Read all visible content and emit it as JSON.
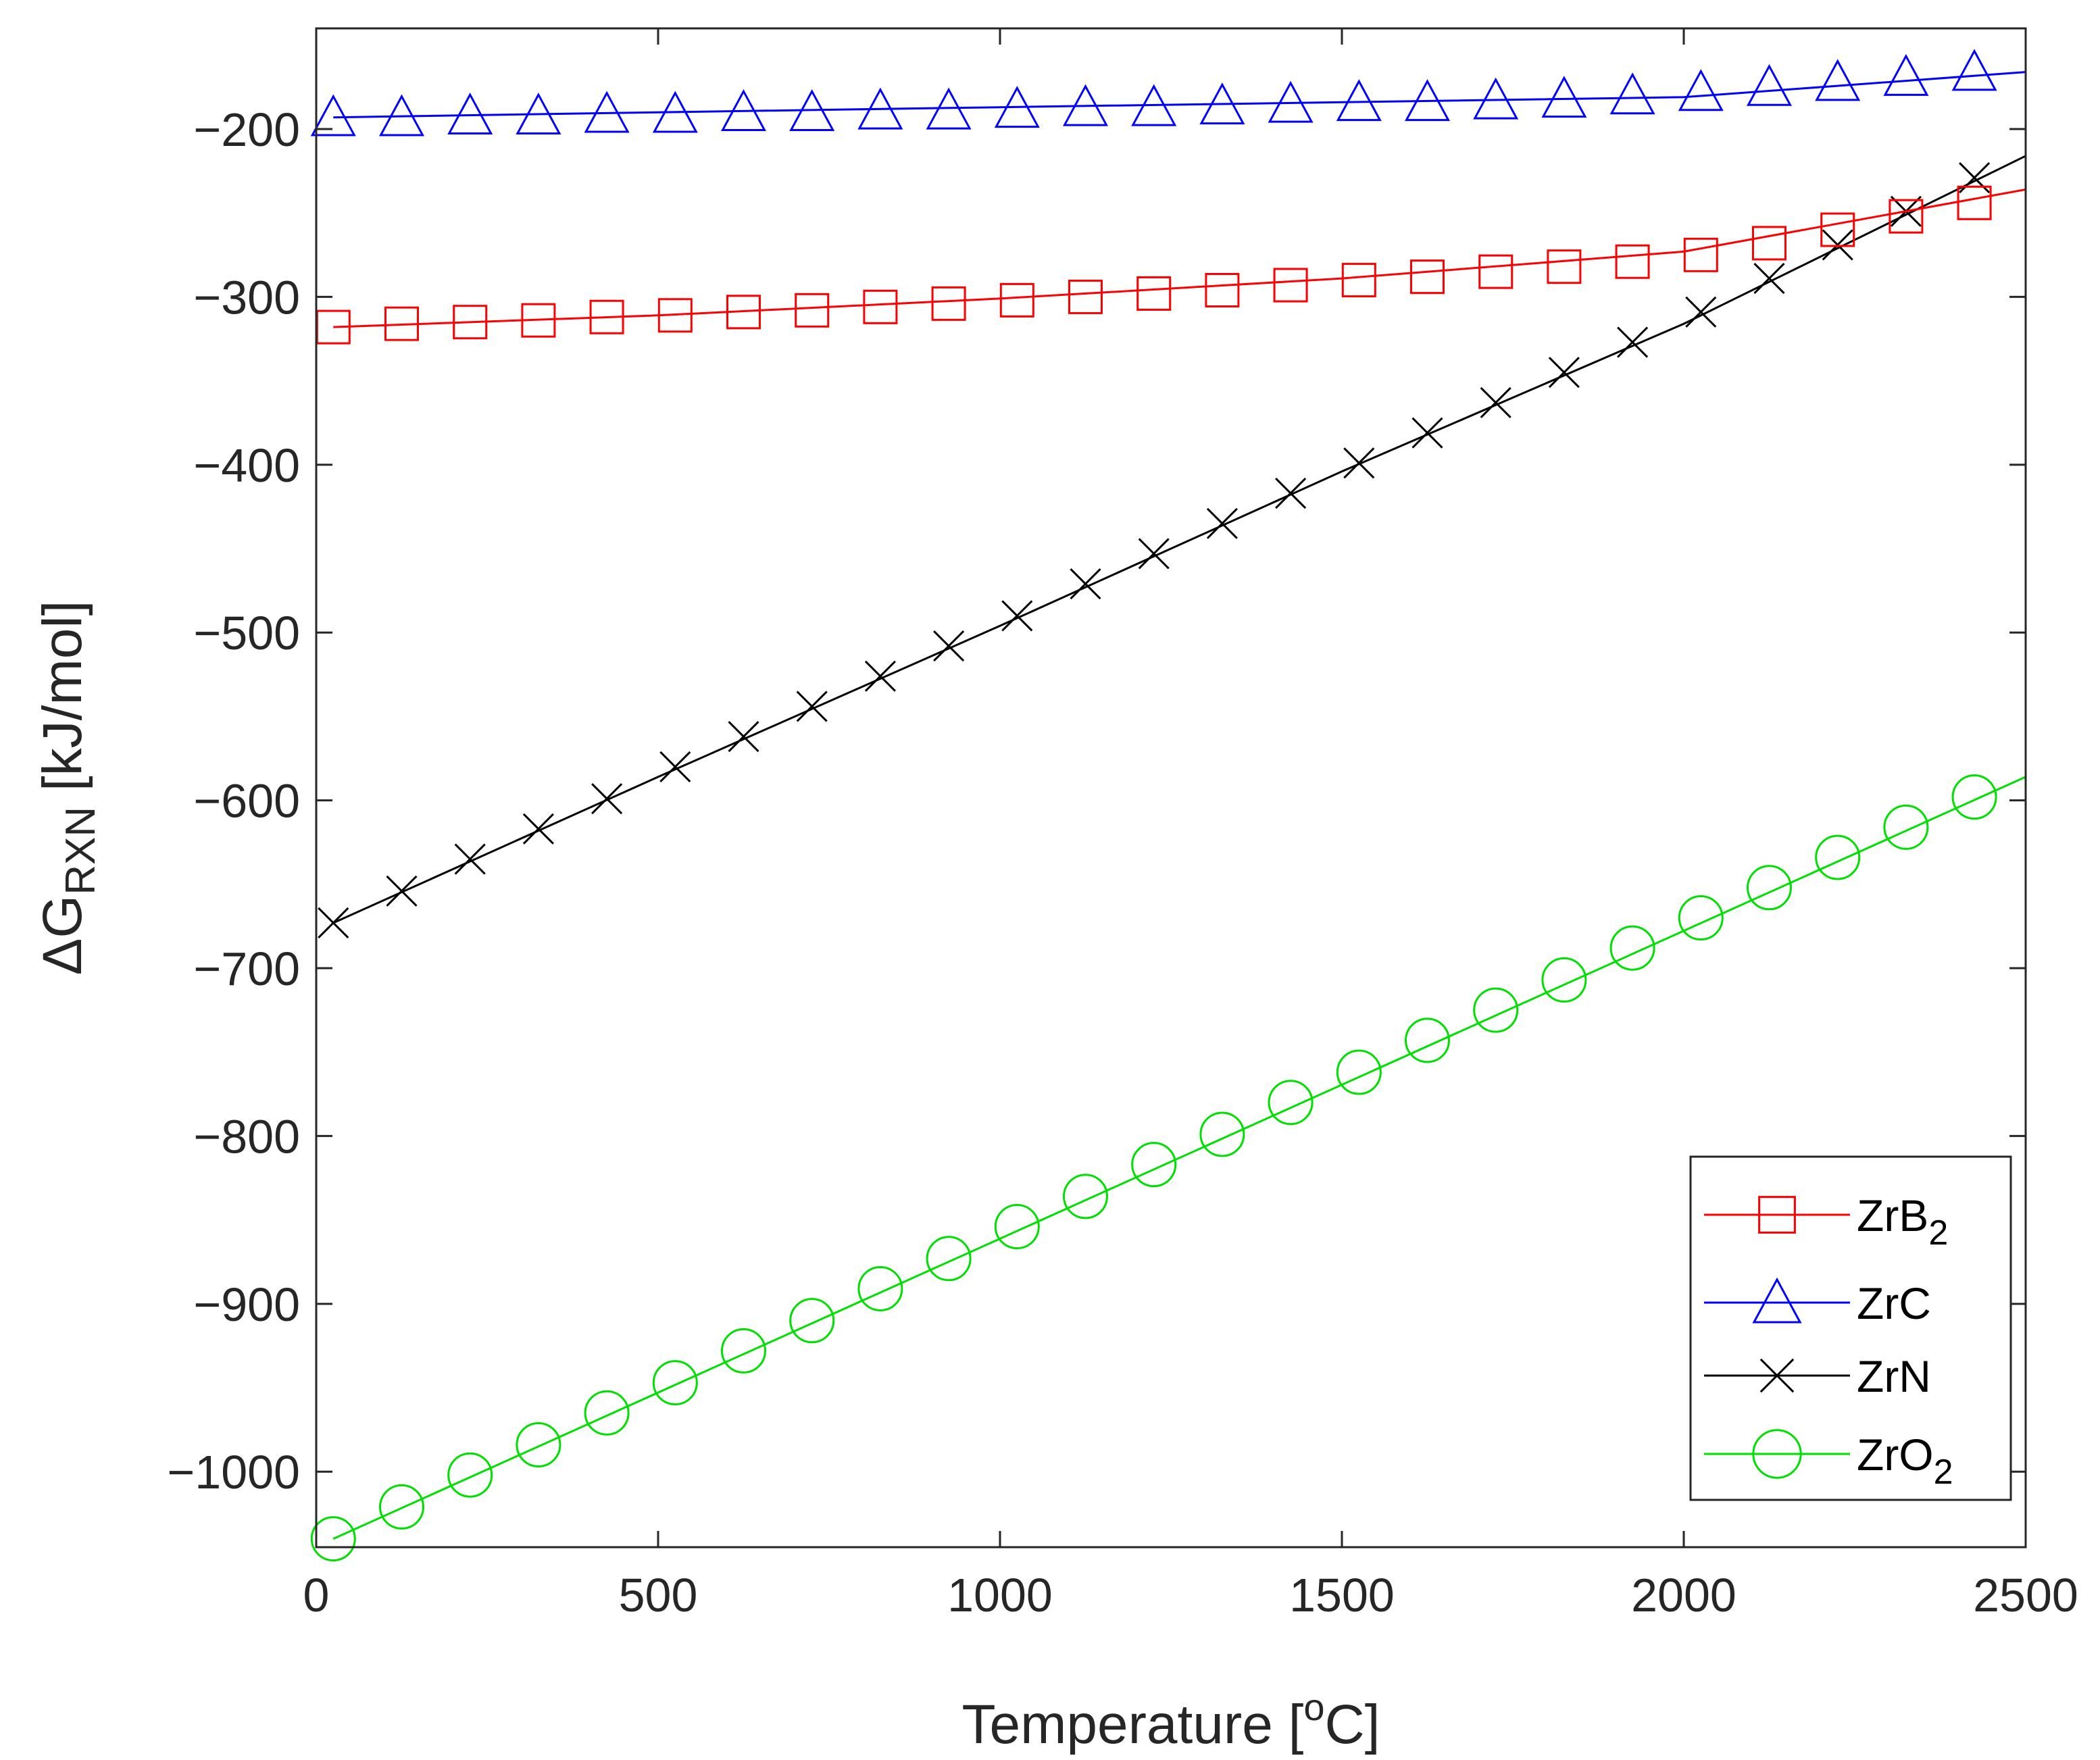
{
  "chart_data": {
    "type": "line",
    "xlabel": {
      "main": "Temperature [",
      "sup": "o",
      "tail": "C]"
    },
    "ylabel": {
      "main": "ΔG",
      "sub": "RXN",
      "tail": " [kJ/mol]"
    },
    "xlim": [
      0,
      2500
    ],
    "ylim": [
      -1045,
      -140
    ],
    "xticks": [
      0,
      500,
      1000,
      1500,
      2000,
      2500
    ],
    "xtick_labels": [
      "0",
      "500",
      "1000",
      "1500",
      "2000",
      "2500"
    ],
    "yticks": [
      -200,
      -300,
      -400,
      -500,
      -600,
      -700,
      -800,
      -900,
      -1000
    ],
    "ytick_labels": [
      "−200",
      "−300",
      "−400",
      "−500",
      "−600",
      "−700",
      "−800",
      "−900",
      "−1000"
    ],
    "grid": false,
    "legend_position": "bottom-right",
    "marker_x": [
      25,
      125,
      225,
      325,
      425,
      525,
      625,
      725,
      825,
      925,
      1025,
      1125,
      1225,
      1325,
      1425,
      1525,
      1625,
      1725,
      1825,
      1925,
      2025,
      2125,
      2225,
      2325,
      2425
    ],
    "series": [
      {
        "name": "ZrB",
        "name_sub": "2",
        "color": "#ff0000",
        "marker": "square",
        "line_x": [
          25,
          500,
          1000,
          1500,
          2000,
          2500
        ],
        "line_y": [
          -318,
          -311,
          -301,
          -289,
          -273,
          -236
        ],
        "marker_y": [
          -318,
          -316,
          -315,
          -314,
          -312,
          -311,
          -309,
          -308,
          -306,
          -304,
          -302,
          -300,
          -298,
          -296,
          -293,
          -290,
          -288,
          -285,
          -282,
          -279,
          -275,
          -268,
          -260,
          -252,
          -244
        ]
      },
      {
        "name": "ZrC",
        "name_sub": "",
        "color": "#0000ff",
        "marker": "triangle",
        "line_x": [
          25,
          500,
          1000,
          1500,
          2000,
          2500
        ],
        "line_y": [
          -193,
          -190,
          -187,
          -184,
          -181,
          -166
        ],
        "marker_y": [
          -193,
          -193,
          -192,
          -192,
          -191,
          -191,
          -190,
          -190,
          -189,
          -189,
          -188,
          -187,
          -187,
          -186,
          -185,
          -184,
          -184,
          -183,
          -182,
          -180,
          -178,
          -175,
          -172,
          -169,
          -166
        ]
      },
      {
        "name": "ZrN",
        "name_sub": "",
        "color": "#000000",
        "marker": "x",
        "line_x": [
          25,
          500,
          1000,
          1500,
          2000,
          2500
        ],
        "line_y": [
          -673,
          -586,
          -496,
          -404,
          -316,
          -216
        ],
        "marker_y": [
          -673,
          -654,
          -635,
          -617,
          -599,
          -580,
          -562,
          -544,
          -526,
          -508,
          -490,
          -471,
          -453,
          -435,
          -417,
          -399,
          -381,
          -363,
          -345,
          -327,
          -309,
          -289,
          -269,
          -249,
          -229
        ]
      },
      {
        "name": "ZrO",
        "name_sub": "2",
        "color": "#00e000",
        "marker": "circle",
        "line_x": [
          25,
          2500
        ],
        "line_y": [
          -1040,
          -586
        ],
        "marker_y": [
          -1040,
          -1021,
          -1002,
          -984,
          -965,
          -947,
          -928,
          -910,
          -891,
          -873,
          -854,
          -836,
          -817,
          -799,
          -780,
          -762,
          -743,
          -725,
          -707,
          -688,
          -670,
          -652,
          -634,
          -616,
          -598
        ]
      }
    ]
  }
}
